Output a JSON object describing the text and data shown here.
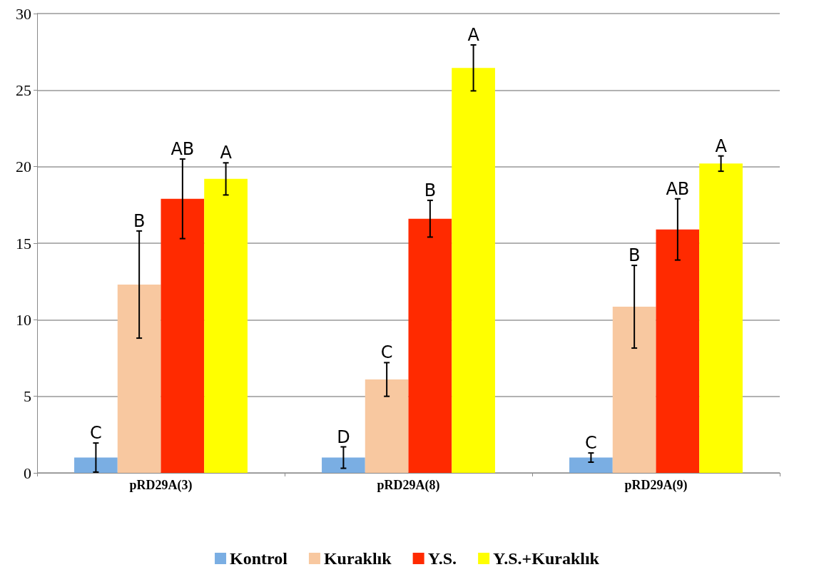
{
  "chart_data": {
    "type": "bar",
    "categories": [
      "pRD29A(3)",
      "pRD29A(8)",
      "pRD29A(9)"
    ],
    "series": [
      {
        "name": "Kontrol",
        "color": "#7aaee3",
        "values": [
          1,
          1,
          1
        ],
        "errors": [
          0.95,
          0.7,
          0.3
        ],
        "value_labels": [
          "C",
          "D",
          "C"
        ]
      },
      {
        "name": "Kuraklık",
        "color": "#f8c8a0",
        "values": [
          12.3,
          6.1,
          10.85
        ],
        "errors": [
          3.5,
          1.1,
          2.7
        ],
        "value_labels": [
          "B",
          "C",
          "B"
        ]
      },
      {
        "name": "Y.S.",
        "color": "#ff2a00",
        "values": [
          17.9,
          16.6,
          15.9
        ],
        "errors": [
          2.6,
          1.2,
          2.0
        ],
        "value_labels": [
          "AB",
          "B",
          "AB"
        ]
      },
      {
        "name": "Y.S.+Kuraklık",
        "color": "#ffff00",
        "values": [
          19.2,
          26.45,
          20.2
        ],
        "errors": [
          1.05,
          1.5,
          0.5
        ],
        "value_labels": [
          "A",
          "A",
          "A"
        ]
      }
    ],
    "ylim": [
      0,
      30
    ],
    "yticks": [
      0,
      5,
      10,
      15,
      20,
      25,
      30
    ],
    "grid": "y",
    "legend": "bottom"
  }
}
